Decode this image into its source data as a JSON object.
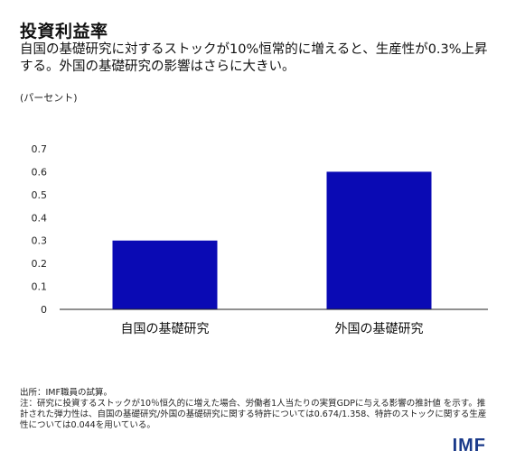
{
  "header": {
    "title": "投資利益率",
    "subtitle": "自国の基礎研究に対するストックが10%恒常的に増えると、生産性が0.3%上昇する。外国の基礎研究の影響はさらに大きい。"
  },
  "chart_data": {
    "type": "bar",
    "unit_label": "(パーセント)",
    "categories": [
      "自国の基礎研究",
      "外国の基礎研究"
    ],
    "values": [
      0.3,
      0.6
    ],
    "yticks": [
      "0",
      "0.1",
      "0.2",
      "0.3",
      "0.4",
      "0.5",
      "0.6",
      "0.7"
    ],
    "ylim": [
      0,
      0.7
    ],
    "bar_color": "#0a0ab4",
    "grid": false,
    "legend": "none"
  },
  "notes": {
    "source": "出所：IMF職員の試算。",
    "note": "注：研究に投資するストックが10％恒久的に増えた場合、労働者1人当たりの実質GDPに与える影響の推計値 を示す。推計された弾力性は、自国の基礎研究/外国の基礎研究に関する特許については0.674/1.358、特許のストックに関する生産性については0.044を用いている。"
  },
  "branding": {
    "logo_text": "IMF",
    "logo_color": "#1a3a8a"
  }
}
